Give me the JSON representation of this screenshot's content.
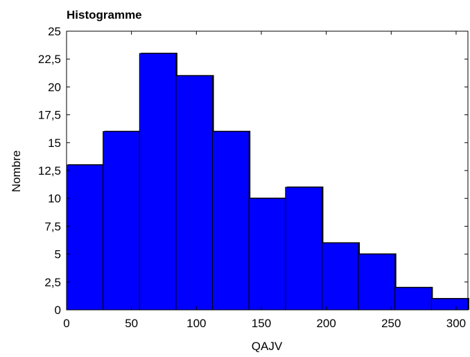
{
  "chart_data": {
    "type": "bar",
    "title": "Histogramme",
    "xlabel": "QAJV",
    "ylabel": "Nombre",
    "bin_edges": [
      0,
      28.1,
      56.2,
      84.3,
      112.4,
      140.5,
      168.6,
      196.7,
      224.8,
      252.9,
      281.0,
      309.1
    ],
    "values": [
      13,
      16,
      23,
      21,
      16,
      10,
      11,
      6,
      5,
      2,
      1
    ],
    "xlim": [
      0,
      309.1
    ],
    "ylim": [
      0,
      25
    ],
    "x_ticks": [
      "0",
      "50",
      "100",
      "150",
      "200",
      "250",
      "300"
    ],
    "y_ticks": [
      "0",
      "2,5",
      "5",
      "7,5",
      "10",
      "12,5",
      "15",
      "17,5",
      "20",
      "22,5",
      "25"
    ],
    "bar_color": "#0000ff",
    "grid": false
  }
}
